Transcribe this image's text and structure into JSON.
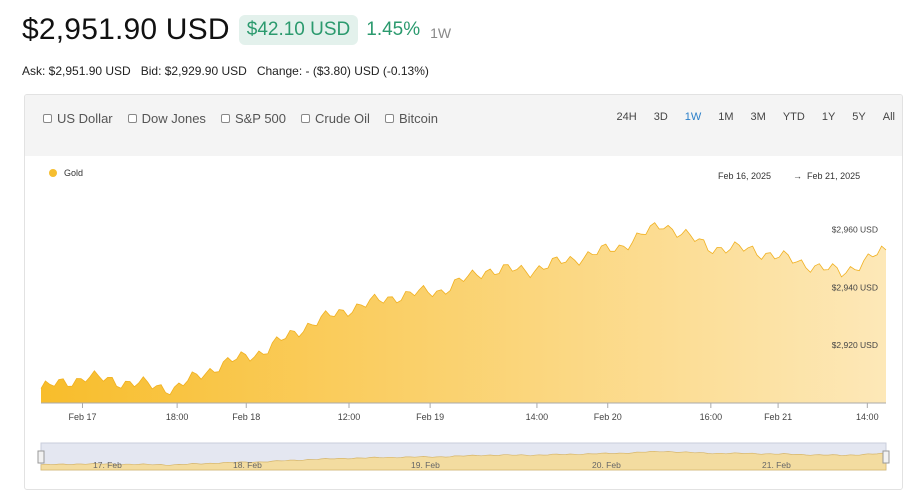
{
  "header": {
    "price": "$2,951.90 USD",
    "change_amount": "$42.10 USD",
    "change_percent": "1.45%",
    "period": "1W"
  },
  "quote": {
    "ask": "Ask: $2,951.90 USD",
    "bid": "Bid: $2,929.90 USD",
    "change": "Change: - ($3.80) USD (-0.13%)"
  },
  "compare_items": [
    "US Dollar",
    "Dow Jones",
    "S&P 500",
    "Crude Oil",
    "Bitcoin"
  ],
  "ranges": [
    "24H",
    "3D",
    "1W",
    "1M",
    "3M",
    "YTD",
    "1Y",
    "5Y",
    "All"
  ],
  "active_range": "1W",
  "legend": {
    "gold_label": "Gold"
  },
  "date_range": {
    "from": "Feb 16, 2025",
    "arrow": "→",
    "to": "Feb 21, 2025"
  },
  "navigator_labels": [
    "17. Feb",
    "18. Feb",
    "19. Feb",
    "20. Feb",
    "21. Feb"
  ],
  "colors": {
    "gold": "#f6be30",
    "green": "#2b9a6e",
    "active_range": "#2a7fc9"
  },
  "chart_data": {
    "type": "area",
    "series": [
      {
        "name": "Gold",
        "x": [
          "Feb 17 00:00",
          "Feb 17 06:00",
          "Feb 17 12:00",
          "Feb 17 18:00",
          "Feb 18 00:00",
          "Feb 18 06:00",
          "Feb 18 12:00",
          "Feb 18 18:00",
          "Feb 19 00:00",
          "Feb 19 06:00",
          "Feb 19 12:00",
          "Feb 19 18:00",
          "Feb 20 00:00",
          "Feb 20 06:00",
          "Feb 20 12:00",
          "Feb 20 18:00",
          "Feb 21 00:00",
          "Feb 21 06:00",
          "Feb 21 12:00",
          "Feb 21 18:00"
        ],
        "values": [
          2905,
          2909,
          2907,
          2905,
          2913,
          2918,
          2927,
          2933,
          2937,
          2939,
          2946,
          2946,
          2950,
          2954,
          2962,
          2954,
          2953,
          2949,
          2945,
          2953
        ]
      }
    ],
    "x_tick_labels": [
      "Feb 17",
      "18:00",
      "Feb 18",
      "12:00",
      "Feb 19",
      "14:00",
      "Feb 20",
      "16:00",
      "Feb 21",
      "14:00"
    ],
    "y_tick_labels": [
      "$2,960 USD",
      "$2,940 USD",
      "$2,920 USD"
    ],
    "y_ticks": [
      2960,
      2940,
      2920
    ],
    "ylim": [
      2900,
      2972
    ],
    "grid": false,
    "legend_position": "top-left"
  }
}
